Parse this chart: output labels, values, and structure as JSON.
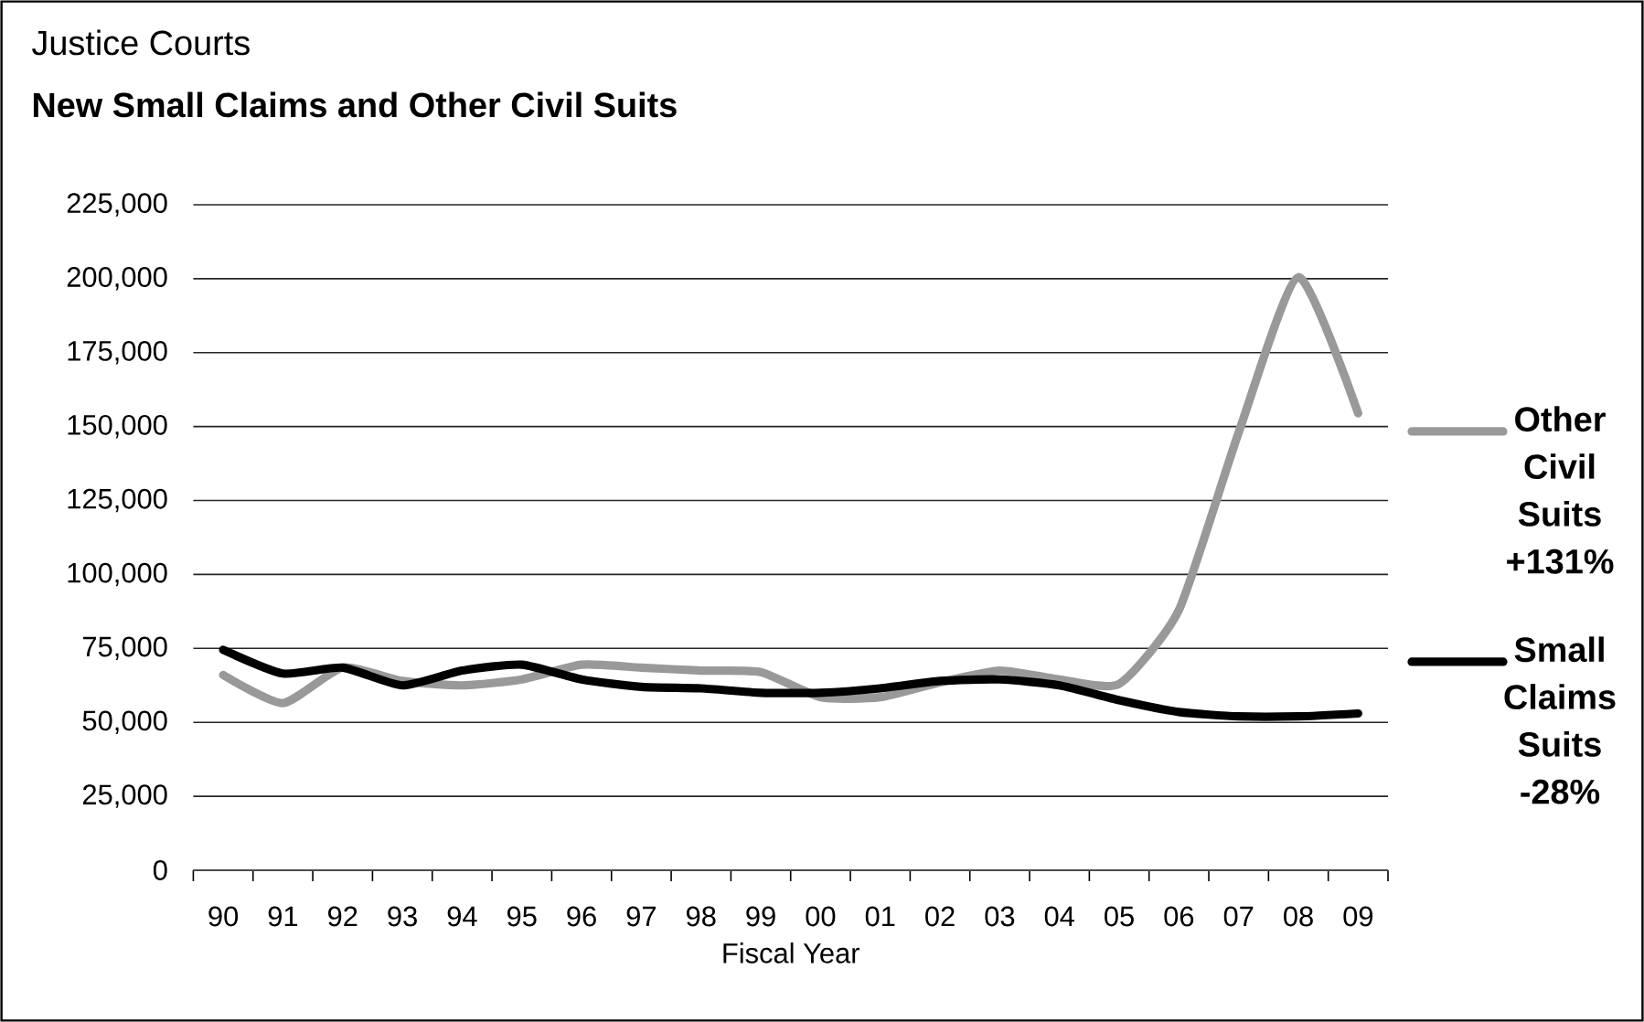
{
  "chart_data": {
    "type": "line",
    "subtitle": "Justice Courts",
    "title": "New Small Claims and Other Civil Suits",
    "xlabel": "Fiscal Year",
    "categories": [
      "90",
      "91",
      "92",
      "93",
      "94",
      "95",
      "96",
      "97",
      "98",
      "99",
      "00",
      "01",
      "02",
      "03",
      "04",
      "05",
      "06",
      "07",
      "08",
      "09"
    ],
    "series": [
      {
        "name": "Other Civil Suits +131%",
        "color": "#999999",
        "values": [
          66000,
          56500,
          68500,
          64000,
          62500,
          64500,
          69500,
          68500,
          67500,
          67000,
          58500,
          58500,
          63500,
          67500,
          64500,
          63000,
          88000,
          148000,
          200500,
          154500
        ]
      },
      {
        "name": "Small Claims Suits -28%",
        "color": "#000000",
        "values": [
          74500,
          66500,
          68500,
          62500,
          67500,
          69500,
          64500,
          62000,
          61500,
          60000,
          60000,
          61500,
          64000,
          64500,
          62500,
          57500,
          53500,
          52000,
          52000,
          53000
        ]
      }
    ],
    "ylim": [
      0,
      225000
    ],
    "yticks": [
      {
        "value": 0,
        "label": "0"
      },
      {
        "value": 25000,
        "label": "25,000"
      },
      {
        "value": 50000,
        "label": "50,000"
      },
      {
        "value": 75000,
        "label": "75,000"
      },
      {
        "value": 100000,
        "label": "100,000"
      },
      {
        "value": 125000,
        "label": "125,000"
      },
      {
        "value": 150000,
        "label": "150,000"
      },
      {
        "value": 175000,
        "label": "175,000"
      },
      {
        "value": 200000,
        "label": "200,000"
      },
      {
        "value": 225000,
        "label": "225,000"
      }
    ],
    "grid": "y",
    "legend": "right"
  }
}
